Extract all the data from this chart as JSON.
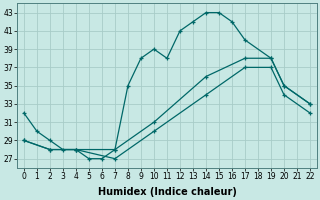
{
  "xlabel": "Humidex (Indice chaleur)",
  "xlim": [
    -0.5,
    22.5
  ],
  "ylim": [
    26,
    44
  ],
  "yticks": [
    27,
    29,
    31,
    33,
    35,
    37,
    39,
    41,
    43
  ],
  "xticks": [
    0,
    1,
    2,
    3,
    4,
    5,
    6,
    7,
    8,
    9,
    10,
    11,
    12,
    13,
    14,
    15,
    16,
    17,
    18,
    19,
    20,
    21,
    22
  ],
  "xtick_labels": [
    "0",
    "1",
    "2",
    "3",
    "4",
    "5",
    "6",
    "7",
    "8",
    "9",
    "10",
    "11",
    "12",
    "13",
    "14",
    "15",
    "16",
    "17",
    "18",
    "19",
    "20",
    "21",
    "22"
  ],
  "bg_color": "#c8e8e4",
  "grid_color": "#a8ccc8",
  "line_color": "#006868",
  "lines": [
    {
      "x": [
        0,
        1,
        2,
        3,
        4,
        5,
        6,
        7,
        8,
        9,
        10,
        11,
        12,
        13,
        14,
        15,
        16,
        17,
        19,
        20,
        22
      ],
      "y": [
        32,
        30,
        29,
        28,
        28,
        27,
        27,
        28,
        35,
        38,
        39,
        38,
        41,
        42,
        43,
        43,
        42,
        40,
        38,
        35,
        33
      ]
    },
    {
      "x": [
        0,
        2,
        4,
        7,
        10,
        14,
        17,
        19,
        20,
        22
      ],
      "y": [
        29,
        28,
        28,
        28,
        31,
        36,
        38,
        38,
        35,
        33
      ]
    },
    {
      "x": [
        0,
        2,
        4,
        7,
        10,
        14,
        17,
        19,
        20,
        22
      ],
      "y": [
        29,
        28,
        28,
        27,
        30,
        34,
        37,
        37,
        34,
        32
      ]
    }
  ],
  "fontsize_tick": 5.5,
  "fontsize_label": 7,
  "marker_size": 3,
  "lw": 0.9
}
